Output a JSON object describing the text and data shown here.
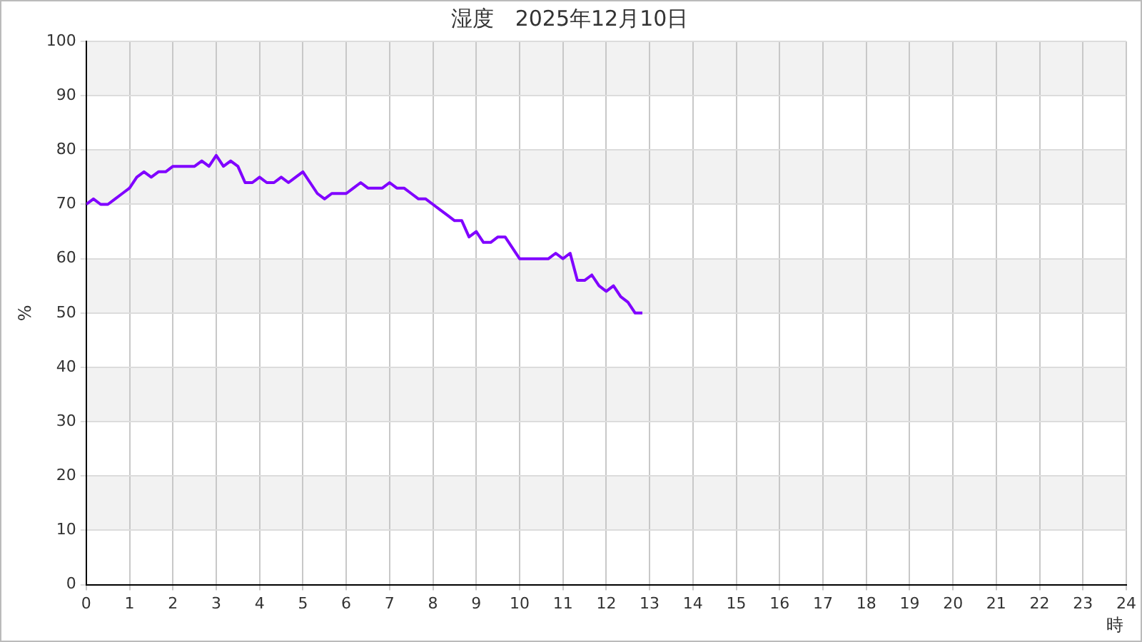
{
  "chart_data": {
    "type": "line",
    "title": "湿度　2025年12月10日",
    "xlabel": "時",
    "ylabel": "%",
    "x": [
      0,
      0.1667,
      0.3333,
      0.5,
      0.6667,
      0.8333,
      1,
      1.1667,
      1.3333,
      1.5,
      1.6667,
      1.8333,
      2,
      2.1667,
      2.3333,
      2.5,
      2.6667,
      2.8333,
      3,
      3.1667,
      3.3333,
      3.5,
      3.6667,
      3.8333,
      4,
      4.1667,
      4.3333,
      4.5,
      4.6667,
      4.8333,
      5,
      5.1667,
      5.3333,
      5.5,
      5.6667,
      5.8333,
      6,
      6.1667,
      6.3333,
      6.5,
      6.6667,
      6.8333,
      7,
      7.1667,
      7.3333,
      7.5,
      7.6667,
      7.8333,
      8,
      8.1667,
      8.3333,
      8.5,
      8.6667,
      8.8333,
      9,
      9.1667,
      9.3333,
      9.5,
      9.6667,
      9.8333,
      10,
      10.1667,
      10.3333,
      10.5,
      10.6667,
      10.8333,
      11,
      11.1667,
      11.3333,
      11.5,
      11.6667,
      11.8333,
      12,
      12.1667,
      12.3333,
      12.5,
      12.6667,
      12.8333
    ],
    "series": [
      {
        "color": "#8000ff",
        "values": [
          70,
          71,
          70,
          70,
          71,
          72,
          73,
          75,
          76,
          75,
          76,
          76,
          77,
          77,
          77,
          77,
          78,
          77,
          79,
          77,
          78,
          77,
          74,
          74,
          75,
          74,
          74,
          75,
          74,
          75,
          76,
          74,
          72,
          71,
          72,
          72,
          72,
          73,
          74,
          73,
          73,
          73,
          74,
          73,
          73,
          72,
          71,
          71,
          70,
          69,
          68,
          67,
          67,
          64,
          65,
          63,
          63,
          64,
          64,
          62,
          60,
          60,
          60,
          60,
          60,
          61,
          60,
          61,
          56,
          56,
          57,
          55,
          54,
          55,
          53,
          52,
          50,
          50
        ]
      }
    ],
    "xlim": [
      0,
      24
    ],
    "xticks": [
      0,
      1,
      2,
      3,
      4,
      5,
      6,
      7,
      8,
      9,
      10,
      11,
      12,
      13,
      14,
      15,
      16,
      17,
      18,
      19,
      20,
      21,
      22,
      23,
      24
    ],
    "ylim": [
      0,
      100
    ],
    "yticks": [
      0,
      10,
      20,
      30,
      40,
      50,
      60,
      70,
      80,
      90,
      100
    ],
    "grid": true,
    "legend": false,
    "marker": "none",
    "line_style": "solid"
  }
}
